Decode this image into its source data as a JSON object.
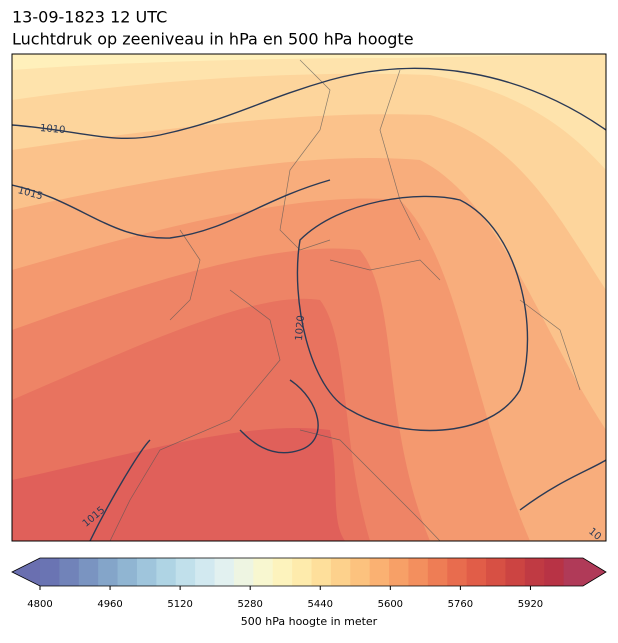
{
  "title": "13-09-1823 12 UTC",
  "subtitle": "Luchtdruk op zeeniveau in hPa en 500 hPa hoogte",
  "isobar_labels": [
    "1010",
    "1015",
    "1020",
    "1015",
    "10"
  ],
  "colorbar": {
    "label": "500 hPa hoogte in meter",
    "lim": [
      4800,
      6040
    ],
    "ticks": [
      4800,
      4960,
      5120,
      5280,
      5440,
      5600,
      5760,
      5920
    ],
    "extend": "both",
    "under_color": "#6a6fb0",
    "over_color": "#b03a58",
    "colors": [
      "#6a74b3",
      "#7183b9",
      "#7a94c1",
      "#84a5c9",
      "#90b5d2",
      "#9fc5dc",
      "#afd4e4",
      "#c1e0eb",
      "#d2e9f0",
      "#e2f1f0",
      "#eef5e2",
      "#f8f7d0",
      "#fdf3bd",
      "#feebac",
      "#fedf9b",
      "#fdd18c",
      "#fcc27e",
      "#fab172",
      "#f7a067",
      "#f38f5e",
      "#ee7d55",
      "#e86c4e",
      "#e15d48",
      "#d75044",
      "#cc4442",
      "#c03a43",
      "#b83345",
      "#b03a58"
    ]
  }
}
